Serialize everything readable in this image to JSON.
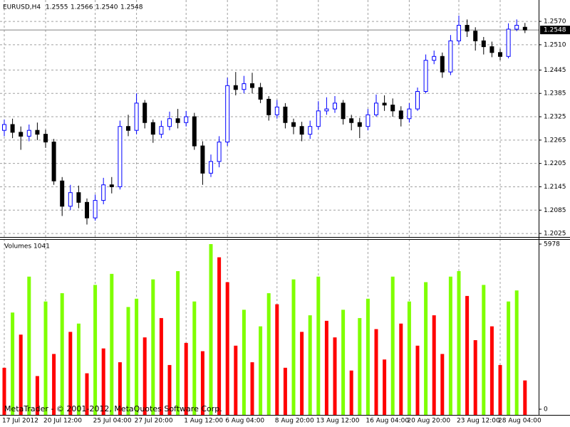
{
  "chart_data": [
    {
      "type": "candlestick",
      "header": {
        "symbol": "EURUSD,H4",
        "ohlc": [
          "1.2555",
          "1.2566",
          "1.2540",
          "1.2548"
        ]
      },
      "categories": [
        "17 Jul 2012",
        null,
        null,
        null,
        null,
        "20 Jul 12:00",
        null,
        null,
        null,
        null,
        null,
        "25 Jul 04:00",
        null,
        null,
        null,
        null,
        "27 Jul 20:00",
        null,
        null,
        null,
        null,
        null,
        "1 Aug 12:00",
        null,
        null,
        null,
        null,
        "6 Aug 04:00",
        null,
        null,
        null,
        null,
        null,
        "8 Aug 20:00",
        null,
        null,
        null,
        null,
        "13 Aug 12:00",
        null,
        null,
        null,
        null,
        null,
        "16 Aug 04:00",
        null,
        null,
        null,
        null,
        "20 Aug 20:00",
        null,
        null,
        null,
        null,
        null,
        "23 Aug 12:00",
        null,
        null,
        null,
        null,
        "28 Aug 04:00",
        null,
        null,
        null
      ],
      "open": [
        1.229,
        1.2305,
        1.2285,
        1.2275,
        1.229,
        1.228,
        1.226,
        1.216,
        1.2095,
        1.213,
        1.2105,
        1.2065,
        1.211,
        1.215,
        1.2145,
        1.23,
        1.229,
        1.236,
        1.231,
        1.228,
        1.23,
        1.232,
        1.231,
        1.2325,
        1.225,
        1.218,
        1.221,
        1.226,
        1.2405,
        1.2395,
        1.241,
        1.24,
        1.237,
        1.233,
        1.235,
        1.231,
        1.23,
        1.228,
        1.23,
        1.234,
        1.2345,
        1.236,
        1.232,
        1.231,
        1.23,
        1.233,
        1.236,
        1.2355,
        1.234,
        1.232,
        1.2345,
        1.239,
        1.247,
        1.248,
        1.244,
        1.252,
        1.256,
        1.2545,
        1.252,
        1.2505,
        1.249,
        1.248,
        1.255,
        1.2555
      ],
      "high": [
        1.2318,
        1.232,
        1.23,
        1.2305,
        1.231,
        1.2292,
        1.2268,
        1.217,
        1.215,
        1.2148,
        1.2115,
        1.2125,
        1.2168,
        1.217,
        1.2315,
        1.233,
        1.2385,
        1.2368,
        1.2318,
        1.2315,
        1.2338,
        1.2345,
        1.234,
        1.2335,
        1.2262,
        1.2228,
        1.2275,
        1.2425,
        1.244,
        1.243,
        1.2438,
        1.2412,
        1.2378,
        1.2368,
        1.236,
        1.232,
        1.2312,
        1.2315,
        1.2365,
        1.2375,
        1.2378,
        1.2368,
        1.233,
        1.2322,
        1.2345,
        1.2382,
        1.238,
        1.2372,
        1.2352,
        1.236,
        1.24,
        1.2485,
        1.2495,
        1.249,
        1.2535,
        1.2585,
        1.2575,
        1.2555,
        1.253,
        1.2518,
        1.25,
        1.2565,
        1.2575,
        1.2566
      ],
      "low": [
        1.2275,
        1.227,
        1.224,
        1.2262,
        1.2265,
        1.2245,
        1.215,
        1.207,
        1.2085,
        1.209,
        1.2048,
        1.2058,
        1.21,
        1.2128,
        1.2138,
        1.2275,
        1.228,
        1.2295,
        1.2258,
        1.227,
        1.229,
        1.2295,
        1.23,
        1.224,
        1.215,
        1.217,
        1.2195,
        1.225,
        1.238,
        1.2385,
        1.2385,
        1.236,
        1.2315,
        1.232,
        1.2295,
        1.228,
        1.2262,
        1.2268,
        1.2292,
        1.233,
        1.2335,
        1.2305,
        1.229,
        1.227,
        1.229,
        1.2325,
        1.234,
        1.2325,
        1.23,
        1.231,
        1.234,
        1.2385,
        1.246,
        1.2425,
        1.2432,
        1.251,
        1.253,
        1.2495,
        1.2485,
        1.2478,
        1.247,
        1.2475,
        1.2545,
        1.254
      ],
      "close": [
        1.2305,
        1.2285,
        1.2275,
        1.229,
        1.228,
        1.226,
        1.216,
        1.2095,
        1.213,
        1.2105,
        1.2065,
        1.211,
        1.215,
        1.2145,
        1.23,
        1.229,
        1.236,
        1.231,
        1.228,
        1.23,
        1.232,
        1.231,
        1.2325,
        1.225,
        1.218,
        1.221,
        1.226,
        1.2405,
        1.2395,
        1.241,
        1.24,
        1.237,
        1.233,
        1.235,
        1.231,
        1.23,
        1.228,
        1.23,
        1.234,
        1.2345,
        1.236,
        1.232,
        1.231,
        1.23,
        1.233,
        1.236,
        1.2355,
        1.234,
        1.232,
        1.2345,
        1.239,
        1.247,
        1.248,
        1.244,
        1.252,
        1.256,
        1.2545,
        1.252,
        1.2505,
        1.249,
        1.248,
        1.255,
        1.256,
        1.2548
      ],
      "up_color": "#0000ff",
      "down_color": "#000000",
      "current_price": 1.2548,
      "ylim": [
        1.2016,
        1.2625
      ],
      "yticks": [
        1.2025,
        1.2085,
        1.2145,
        1.2205,
        1.2265,
        1.2325,
        1.2385,
        1.2445,
        {
          "value": 1.251,
          "label": "1.2510"
        },
        {
          "value": 1.257,
          "label": "1.2570"
        }
      ],
      "grid": true
    },
    {
      "type": "bar",
      "title": "Volumes 1041",
      "values": [
        1500,
        3500,
        2700,
        4800,
        1200,
        3900,
        2000,
        4200,
        2800,
        3100,
        1300,
        4500,
        2200,
        4900,
        1700,
        3700,
        4000,
        2600,
        4700,
        3300,
        1600,
        5000,
        2400,
        3900,
        2100,
        5978,
        5500,
        4600,
        2300,
        3600,
        1700,
        3000,
        4200,
        3800,
        1500,
        4700,
        2800,
        3400,
        4800,
        3200,
        2600,
        3600,
        1400,
        3300,
        4000,
        2900,
        1800,
        4800,
        3100,
        3900,
        2300,
        4600,
        3400,
        2000,
        4800,
        5000,
        4100,
        2500,
        4500,
        3000,
        1600,
        3900,
        4300,
        1041
      ],
      "up_color": "#7fff00",
      "down_color": "#ff0000",
      "ylim": [
        0,
        5978
      ],
      "yticks": [
        0,
        5978
      ],
      "watermark": "MetaTrader - © 2001-2012, MetaQuotes Software Corp."
    }
  ]
}
